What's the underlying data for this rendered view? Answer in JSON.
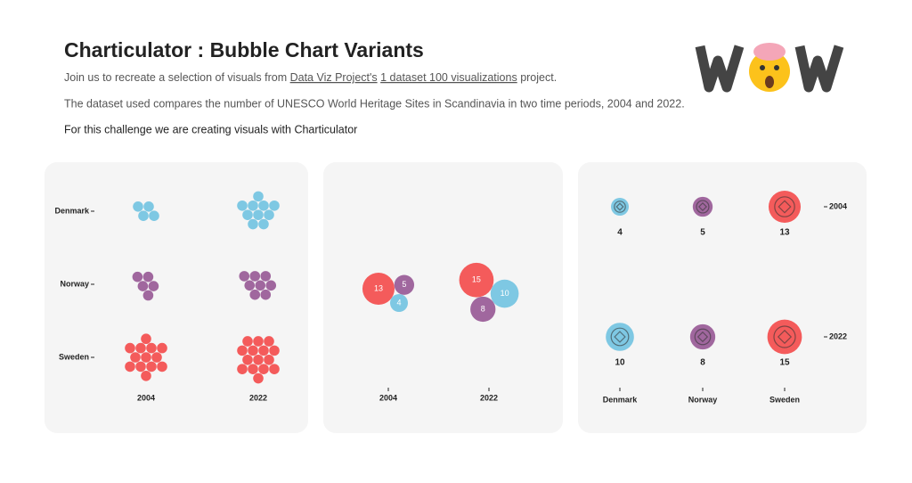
{
  "header": {
    "title": "Charticulator : Bubble Chart Variants",
    "intro": {
      "text_before": "Join us to recreate a selection of visuals from",
      "link_1": "Data Viz Project's",
      "link_2": "1 dataset 100 visualizations",
      "text_after": "project."
    },
    "dataset_note": "The dataset used compares the number of UNESCO World Heritage Sites in Scandinavia in two time periods, 2004 and 2022.",
    "challenge": "For this challenge we are creating visuals with Charticulator"
  },
  "chart_data": [
    {
      "type": "unit-dots",
      "categories": [
        "2004",
        "2022"
      ],
      "series": [
        {
          "name": "Denmark",
          "color": "#7ec8e3",
          "values": [
            4,
            10
          ]
        },
        {
          "name": "Norway",
          "color": "#a0679e",
          "values": [
            5,
            8
          ]
        },
        {
          "name": "Sweden",
          "color": "#f45b5b",
          "values": [
            13,
            15
          ]
        }
      ]
    },
    {
      "type": "bubble-cluster",
      "categories": [
        "2004",
        "2022"
      ],
      "series": [
        {
          "color": "#7ec8e3",
          "values": [
            4,
            10
          ]
        },
        {
          "color": "#a0679e",
          "values": [
            5,
            8
          ]
        },
        {
          "color": "#f45b5b",
          "values": [
            13,
            15
          ]
        }
      ]
    },
    {
      "type": "bubble-grid",
      "categories": [
        "Denmark",
        "Norway",
        "Sweden"
      ],
      "colors": [
        "#7ec8e3",
        "#a0679e",
        "#f45b5b"
      ],
      "series": [
        {
          "name": "2004",
          "values": [
            4,
            5,
            13
          ]
        },
        {
          "name": "2022",
          "values": [
            10,
            8,
            15
          ]
        }
      ]
    }
  ]
}
